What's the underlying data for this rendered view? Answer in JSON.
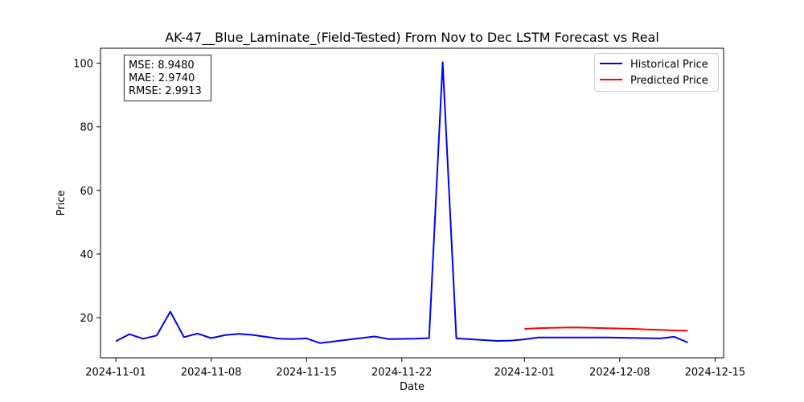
{
  "chart_data": {
    "type": "line",
    "title": "AK-47__Blue_Laminate_(Field-Tested) From Nov to Dec LSTM Forecast vs Real",
    "xlabel": "Date",
    "ylabel": "Price",
    "xlim": [
      "2024-10-30T21:00",
      "2024-12-15T15:00"
    ],
    "ylim": [
      7.4,
      104.7
    ],
    "x_ticks": [
      "2024-11-01",
      "2024-11-08",
      "2024-11-15",
      "2024-11-22",
      "2024-12-01",
      "2024-12-08",
      "2024-12-15"
    ],
    "y_ticks": [
      20,
      40,
      60,
      80,
      100
    ],
    "grid": false,
    "legend_position": "top-right",
    "metrics": [
      "MSE: 8.9480",
      "MAE: 2.9740",
      "RMSE: 2.9913"
    ],
    "series": [
      {
        "name": "Historical Price",
        "color": "#0000ff",
        "points": [
          [
            "2024-11-01",
            12.6
          ],
          [
            "2024-11-02",
            14.8
          ],
          [
            "2024-11-03",
            13.4
          ],
          [
            "2024-11-04",
            14.4
          ],
          [
            "2024-11-05",
            21.9
          ],
          [
            "2024-11-06",
            13.9
          ],
          [
            "2024-11-07",
            15.0
          ],
          [
            "2024-11-08",
            13.6
          ],
          [
            "2024-11-09",
            14.5
          ],
          [
            "2024-11-10",
            14.9
          ],
          [
            "2024-11-11",
            14.6
          ],
          [
            "2024-11-12",
            14.0
          ],
          [
            "2024-11-13",
            13.4
          ],
          [
            "2024-11-14",
            13.3
          ],
          [
            "2024-11-15",
            13.5
          ],
          [
            "2024-11-16",
            12.0
          ],
          [
            "2024-11-19",
            13.6
          ],
          [
            "2024-11-20",
            14.1
          ],
          [
            "2024-11-21",
            13.3
          ],
          [
            "2024-11-23",
            13.4
          ],
          [
            "2024-11-24",
            13.6
          ],
          [
            "2024-11-25",
            100.3
          ],
          [
            "2024-11-26",
            13.5
          ],
          [
            "2024-11-29",
            12.7
          ],
          [
            "2024-11-30",
            12.8
          ],
          [
            "2024-12-01",
            13.2
          ],
          [
            "2024-12-02",
            13.8
          ],
          [
            "2024-12-07",
            13.8
          ],
          [
            "2024-12-11",
            13.5
          ],
          [
            "2024-12-12",
            14.0
          ],
          [
            "2024-12-13",
            12.2
          ]
        ]
      },
      {
        "name": "Predicted Price",
        "color": "#ff0000",
        "points": [
          [
            "2024-12-01",
            16.5
          ],
          [
            "2024-12-02",
            16.7
          ],
          [
            "2024-12-03",
            16.8
          ],
          [
            "2024-12-04",
            16.9
          ],
          [
            "2024-12-05",
            16.9
          ],
          [
            "2024-12-06",
            16.8
          ],
          [
            "2024-12-07",
            16.7
          ],
          [
            "2024-12-08",
            16.6
          ],
          [
            "2024-12-09",
            16.5
          ],
          [
            "2024-12-10",
            16.3
          ],
          [
            "2024-12-11",
            16.2
          ],
          [
            "2024-12-12",
            16.0
          ],
          [
            "2024-12-13",
            15.9
          ]
        ]
      }
    ]
  }
}
